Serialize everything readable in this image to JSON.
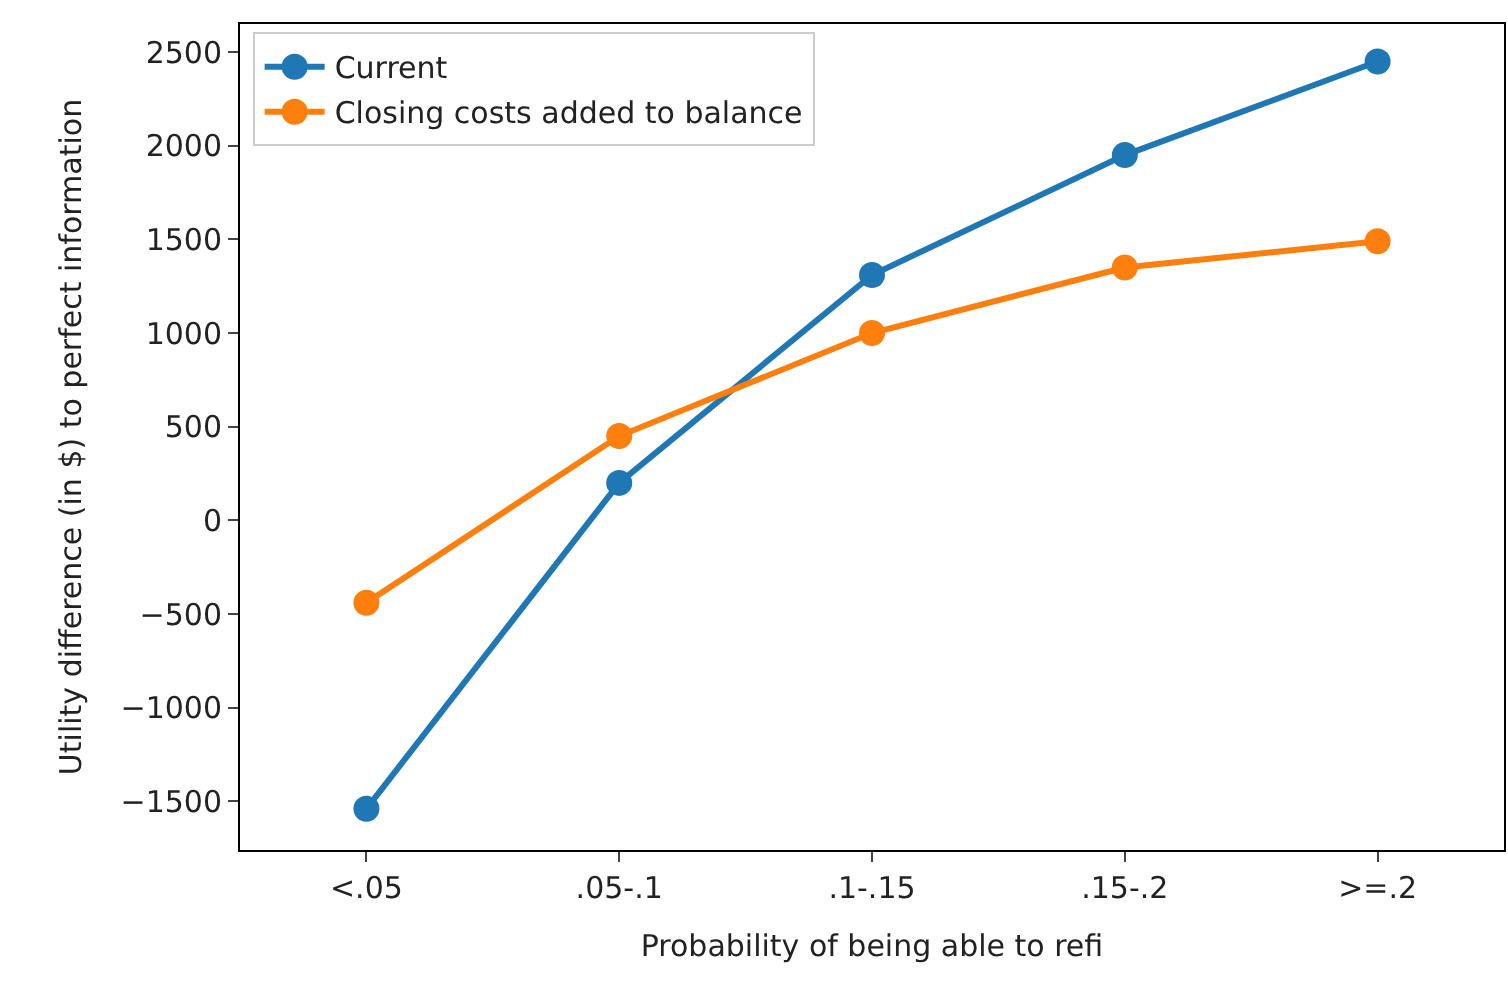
{
  "chart_data": {
    "type": "line",
    "xlabel": "Probability of being able to refi",
    "ylabel": "Utility difference (in $) to perfect information",
    "categories": [
      "<.05",
      ".05-.1",
      ".1-.15",
      ".15-.2",
      ">=.2"
    ],
    "series": [
      {
        "name": "Current",
        "color": "#1f77b4",
        "values": [
          -1540,
          200,
          1310,
          1950,
          2450
        ]
      },
      {
        "name": "Closing costs added to balance",
        "color": "#ff7f0e",
        "values": [
          -440,
          450,
          1000,
          1350,
          1490
        ]
      }
    ],
    "ylim": [
      -1760,
      2650
    ],
    "yticks": [
      {
        "value": -1500,
        "label": "−1500"
      },
      {
        "value": -1000,
        "label": "−1000"
      },
      {
        "value": -500,
        "label": "−500"
      },
      0,
      500,
      1000,
      1500,
      2000,
      2500
    ],
    "legend": "top left",
    "marker": "circle",
    "line_style": "solid"
  }
}
